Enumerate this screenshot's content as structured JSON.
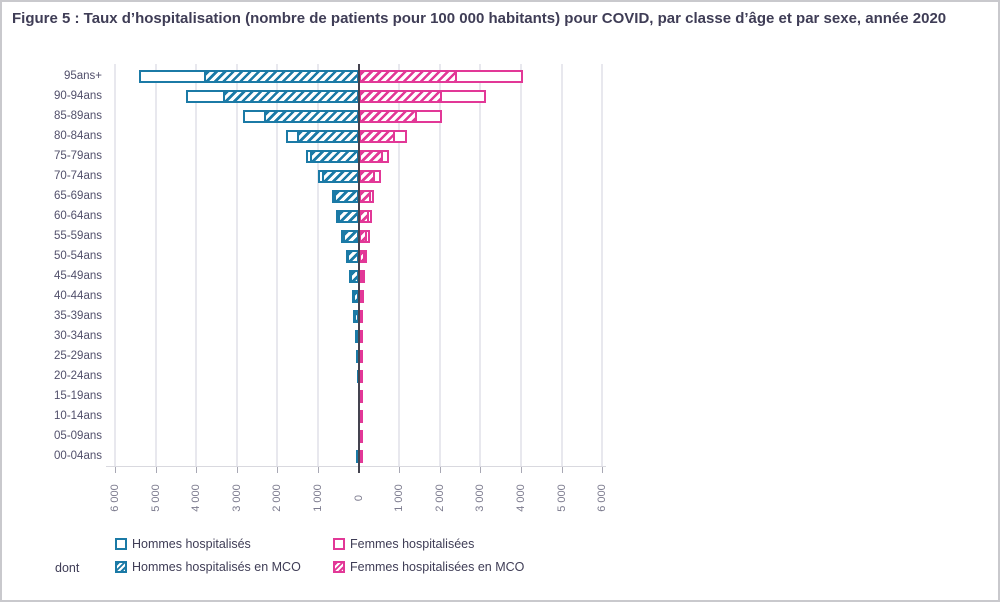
{
  "figure": {
    "title": "Figure 5 : Taux d’hospitalisation (nombre de patients pour 100 000 habitants) pour COVID, par classe d’âge et par sexe, année 2020"
  },
  "legend": {
    "dont_label": "dont",
    "items": [
      {
        "label": "Hommes hospitalisés",
        "style": "outline",
        "color": "#1b7aa6"
      },
      {
        "label": "Femmes hospitalisées",
        "style": "outline",
        "color": "#e23897"
      },
      {
        "label": "Hommes hospitalisés en MCO",
        "style": "hatched",
        "color": "#1b7aa6"
      },
      {
        "label": "Femmes hospitalisées en MCO",
        "style": "hatched",
        "color": "#e23897"
      }
    ]
  },
  "chart_data": {
    "type": "bar",
    "subtype": "population-pyramid",
    "title": "Taux d’hospitalisation pour COVID, par classe d’âge et par sexe, année 2020",
    "xlabel": "",
    "ylabel": "",
    "unit": "patients pour 100 000 habitants",
    "grid": true,
    "axis_max": 6000,
    "categories": [
      "95ans+",
      "90-94ans",
      "85-89ans",
      "80-84ans",
      "75-79ans",
      "70-74ans",
      "65-69ans",
      "60-64ans",
      "55-59ans",
      "50-54ans",
      "45-49ans",
      "40-44ans",
      "35-39ans",
      "30-34ans",
      "25-29ans",
      "20-24ans",
      "15-19ans",
      "10-14ans",
      "05-09ans",
      "00-04ans"
    ],
    "x_axis": {
      "tick_labels": [
        "6 000",
        "5 000",
        "4 000",
        "3 000",
        "2 000",
        "1 000",
        "0",
        "1 000",
        "2 000",
        "3 000",
        "4 000",
        "5 000",
        "6 000"
      ],
      "tick_values": [
        -6000,
        -5000,
        -4000,
        -3000,
        -2000,
        -1000,
        0,
        1000,
        2000,
        3000,
        4000,
        5000,
        6000
      ]
    },
    "series": [
      {
        "name": "Hommes hospitalisés",
        "side": "left",
        "color": "#1b7aa6",
        "hatched": false,
        "values": [
          5400,
          4250,
          2850,
          1780,
          1300,
          1010,
          650,
          550,
          430,
          320,
          230,
          170,
          130,
          90,
          60,
          45,
          25,
          20,
          25,
          60
        ]
      },
      {
        "name": "Hommes hospitalisés en MCO",
        "side": "left",
        "color": "#1b7aa6",
        "hatched": true,
        "values": [
          3800,
          3330,
          2330,
          1520,
          1190,
          910,
          600,
          500,
          390,
          290,
          205,
          150,
          115,
          80,
          50,
          38,
          21,
          16,
          21,
          52
        ]
      },
      {
        "name": "Femmes hospitalisées",
        "side": "right",
        "color": "#e23897",
        "hatched": false,
        "values": [
          4040,
          3130,
          2060,
          1200,
          740,
          550,
          390,
          340,
          280,
          210,
          160,
          130,
          110,
          95,
          85,
          70,
          35,
          20,
          20,
          85
        ]
      },
      {
        "name": "Femmes hospitalisées en MCO",
        "side": "right",
        "color": "#e23897",
        "hatched": true,
        "values": [
          2420,
          2060,
          1440,
          890,
          600,
          405,
          310,
          260,
          210,
          160,
          120,
          100,
          85,
          75,
          65,
          55,
          28,
          16,
          17,
          72
        ]
      }
    ]
  }
}
